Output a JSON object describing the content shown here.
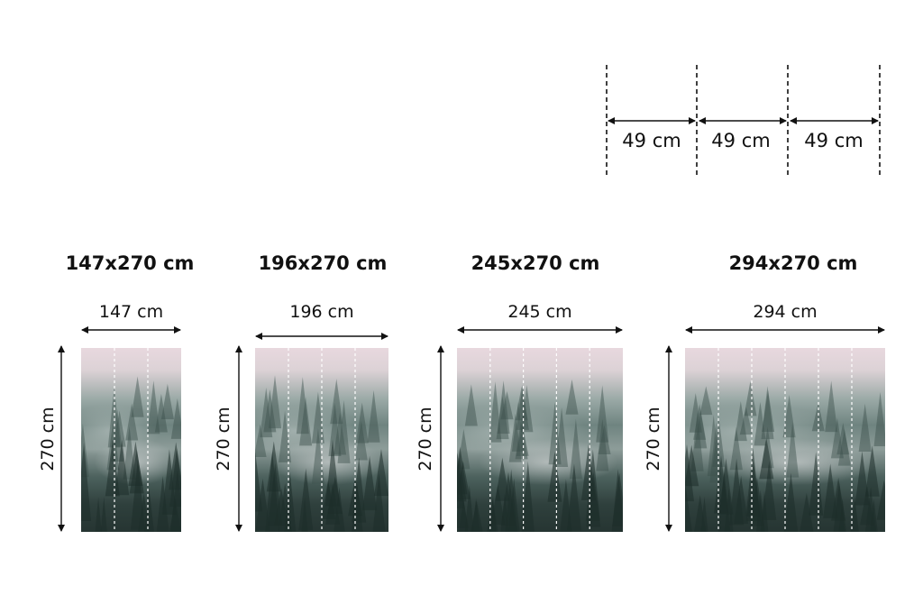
{
  "panel_width": {
    "value": 49,
    "unit": "cm",
    "labels": [
      "49 cm",
      "49 cm",
      "49 cm"
    ]
  },
  "options": [
    {
      "title": "147x270 cm",
      "width_label": "147 cm",
      "height_label": "270 cm",
      "panels": 3
    },
    {
      "title": "196x270 cm",
      "width_label": "196 cm",
      "height_label": "270 cm",
      "panels": 4
    },
    {
      "title": "245x270 cm",
      "width_label": "245 cm",
      "height_label": "270 cm",
      "panels": 5
    },
    {
      "title": "294x270 cm",
      "width_label": "294 cm",
      "height_label": "270 cm",
      "panels": 6
    }
  ],
  "colors": {
    "line": "#111111",
    "mist_top": "#e8d8de",
    "forest_dark": "#263532"
  }
}
